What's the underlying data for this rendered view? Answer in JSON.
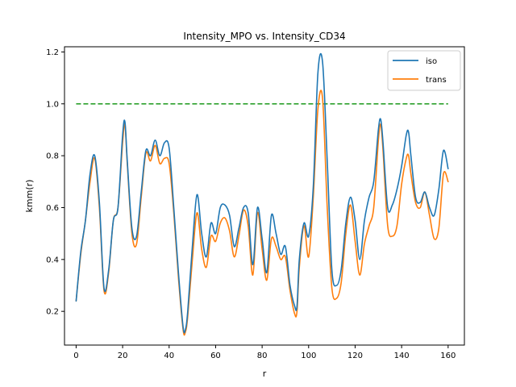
{
  "chart_data": {
    "type": "line",
    "title": "Intensity_MPO vs. Intensity_CD34",
    "xlabel": "r",
    "ylabel": "kmm(r)",
    "xlim": [
      -5,
      167
    ],
    "ylim": [
      0.07,
      1.22
    ],
    "xticks": [
      0,
      20,
      40,
      60,
      80,
      100,
      120,
      140,
      160
    ],
    "yticks": [
      0.2,
      0.4,
      0.6,
      0.8,
      1.0,
      1.2
    ],
    "ytick_labels": [
      "0.2",
      "0.4",
      "0.6",
      "0.8",
      "1.0",
      "1.2"
    ],
    "grid": false,
    "legend_position": "top-right",
    "series": [
      {
        "name": "iso",
        "color": "#1f77b4",
        "style": "solid",
        "x": [
          0,
          2,
          4,
          6,
          8,
          10,
          12,
          14,
          16,
          18,
          20,
          21,
          22,
          24,
          26,
          28,
          30,
          32,
          34,
          36,
          38,
          40,
          42,
          44,
          46,
          47,
          48,
          50,
          52,
          54,
          56,
          58,
          60,
          62,
          64,
          66,
          68,
          70,
          72,
          74,
          76,
          78,
          80,
          82,
          84,
          86,
          88,
          90,
          92,
          94,
          95,
          96,
          98,
          100,
          102,
          104,
          106,
          108,
          110,
          112,
          114,
          116,
          118,
          120,
          122,
          124,
          126,
          128,
          130,
          131,
          132,
          134,
          136,
          138,
          140,
          142,
          143,
          144,
          146,
          148,
          150,
          152,
          154,
          156,
          158,
          160
        ],
        "y": [
          0.24,
          0.43,
          0.55,
          0.73,
          0.8,
          0.62,
          0.29,
          0.36,
          0.55,
          0.6,
          0.88,
          0.93,
          0.78,
          0.52,
          0.49,
          0.66,
          0.82,
          0.8,
          0.86,
          0.8,
          0.85,
          0.83,
          0.6,
          0.35,
          0.14,
          0.13,
          0.2,
          0.45,
          0.65,
          0.5,
          0.41,
          0.54,
          0.5,
          0.6,
          0.61,
          0.57,
          0.45,
          0.52,
          0.6,
          0.58,
          0.38,
          0.6,
          0.48,
          0.35,
          0.57,
          0.5,
          0.42,
          0.45,
          0.3,
          0.22,
          0.22,
          0.4,
          0.54,
          0.49,
          0.68,
          1.12,
          1.16,
          0.78,
          0.36,
          0.3,
          0.36,
          0.54,
          0.64,
          0.55,
          0.4,
          0.55,
          0.64,
          0.7,
          0.9,
          0.94,
          0.85,
          0.6,
          0.61,
          0.67,
          0.76,
          0.88,
          0.89,
          0.8,
          0.64,
          0.62,
          0.66,
          0.6,
          0.57,
          0.67,
          0.82,
          0.75
        ]
      },
      {
        "name": "trans",
        "color": "#ff7f0e",
        "style": "solid",
        "x": [
          0,
          2,
          4,
          6,
          8,
          10,
          12,
          14,
          16,
          18,
          20,
          21,
          22,
          24,
          26,
          28,
          30,
          32,
          34,
          36,
          38,
          40,
          42,
          44,
          46,
          47,
          48,
          50,
          52,
          54,
          56,
          58,
          60,
          62,
          64,
          66,
          68,
          70,
          72,
          74,
          76,
          78,
          80,
          82,
          84,
          86,
          88,
          90,
          92,
          94,
          95,
          96,
          98,
          100,
          102,
          104,
          106,
          108,
          110,
          112,
          114,
          116,
          118,
          120,
          122,
          124,
          126,
          128,
          130,
          131,
          132,
          134,
          136,
          138,
          140,
          142,
          143,
          144,
          146,
          148,
          150,
          152,
          154,
          156,
          158,
          160
        ],
        "y": [
          0.24,
          0.42,
          0.55,
          0.7,
          0.79,
          0.6,
          0.28,
          0.35,
          0.55,
          0.6,
          0.85,
          0.92,
          0.77,
          0.5,
          0.46,
          0.64,
          0.81,
          0.78,
          0.84,
          0.77,
          0.79,
          0.77,
          0.58,
          0.33,
          0.13,
          0.12,
          0.18,
          0.4,
          0.58,
          0.44,
          0.37,
          0.49,
          0.47,
          0.54,
          0.56,
          0.51,
          0.41,
          0.49,
          0.59,
          0.53,
          0.34,
          0.58,
          0.44,
          0.32,
          0.48,
          0.45,
          0.4,
          0.41,
          0.28,
          0.19,
          0.2,
          0.37,
          0.53,
          0.41,
          0.64,
          0.98,
          1.02,
          0.6,
          0.29,
          0.25,
          0.31,
          0.5,
          0.61,
          0.47,
          0.34,
          0.46,
          0.53,
          0.6,
          0.86,
          0.92,
          0.82,
          0.53,
          0.49,
          0.53,
          0.69,
          0.79,
          0.8,
          0.73,
          0.62,
          0.6,
          0.66,
          0.57,
          0.48,
          0.52,
          0.73,
          0.7
        ]
      },
      {
        "name": "",
        "color": "#2ca02c",
        "style": "dashed",
        "x": [
          0,
          160
        ],
        "y": [
          1.0,
          1.0
        ]
      }
    ]
  }
}
